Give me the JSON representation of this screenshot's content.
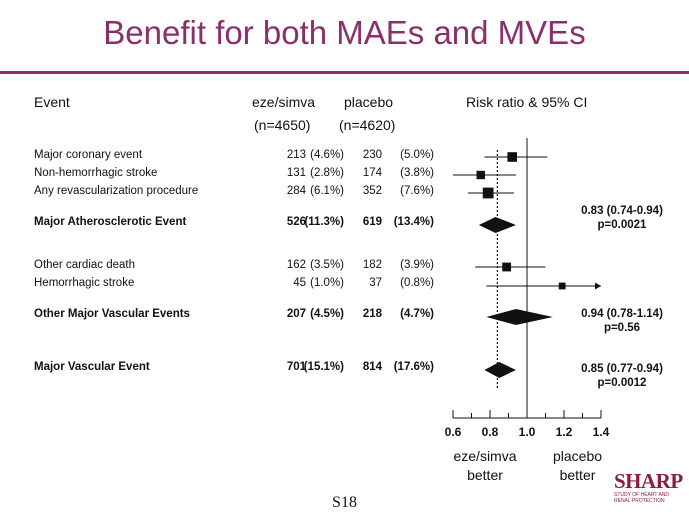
{
  "slide": {
    "title": "Benefit for both MAEs and MVEs",
    "slide_number": "S18"
  },
  "headers": {
    "event": "Event",
    "group1": "eze/simva",
    "group1_n": "(n=4650)",
    "group2": "placebo",
    "group2_n": "(n=4620)",
    "ci": "Risk ratio & 95% CI"
  },
  "rows": [
    {
      "label": "Major coronary event",
      "n1": "213",
      "p1": "(4.6%)",
      "n2": "230",
      "p2": "(5.0%)"
    },
    {
      "label": "Non-hemorrhagic stroke",
      "n1": "131",
      "p1": "(2.8%)",
      "n2": "174",
      "p2": "(3.8%)"
    },
    {
      "label": "Any revascularization procedure",
      "n1": "284",
      "p1": "(6.1%)",
      "n2": "352",
      "p2": "(7.6%)"
    },
    {
      "label": "Major Atherosclerotic Event",
      "n1": "526",
      "p1": "(11.3%)",
      "n2": "619",
      "p2": "(13.4%)"
    },
    {
      "label": "Other cardiac death",
      "n1": "162",
      "p1": "(3.5%)",
      "n2": "182",
      "p2": "(3.9%)"
    },
    {
      "label": "Hemorrhagic stroke",
      "n1": "45",
      "p1": "(1.0%)",
      "n2": "37",
      "p2": "(0.8%)"
    },
    {
      "label": "Other Major Vascular Events",
      "n1": "207",
      "p1": "(4.5%)",
      "n2": "218",
      "p2": "(4.7%)"
    },
    {
      "label": "Major Vascular Event",
      "n1": "701",
      "p1": "(15.1%)",
      "n2": "814",
      "p2": "(17.6%)"
    }
  ],
  "results": [
    {
      "rr": "0.83 (0.74-0.94)",
      "p": "p=0.0021"
    },
    {
      "rr": "0.94 (0.78-1.14)",
      "p": "p=0.56"
    },
    {
      "rr": "0.85 (0.77-0.94)",
      "p": "p=0.0012"
    }
  ],
  "axis_labels": {
    "left_line1": "eze/simva",
    "left_line2": "better",
    "right_line1": "placebo",
    "right_line2": "better"
  },
  "logo": {
    "name": "SHARP",
    "subtitle_line1": "STUDY OF HEART AND",
    "subtitle_line2": "RENAL PROTECTION"
  },
  "colors": {
    "accent": "#8b2f6b",
    "text": "#111111"
  },
  "chart_data": {
    "type": "forest",
    "title": "Risk ratio & 95% CI",
    "xlim": [
      0.6,
      1.4
    ],
    "ticks": [
      "0.6",
      "0.8",
      "1.0",
      "1.2",
      "1.4"
    ],
    "tick_values": [
      0.6,
      0.8,
      1.0,
      1.2,
      1.4
    ],
    "minor_tick_values": [
      0.7,
      0.9,
      1.1,
      1.3
    ],
    "null_line": 1.0,
    "overall_line": 0.84,
    "points": [
      {
        "name": "Major coronary event",
        "shape": "square",
        "weight": 0.7,
        "rr": 0.92,
        "lo": 0.77,
        "hi": 1.11
      },
      {
        "name": "Non-hemorrhagic stroke",
        "shape": "square",
        "weight": 0.55,
        "rr": 0.75,
        "lo": 0.6,
        "hi": 0.94
      },
      {
        "name": "Any revascularization procedure",
        "shape": "square",
        "weight": 0.85,
        "rr": 0.79,
        "lo": 0.68,
        "hi": 0.93
      },
      {
        "name": "Major Atherosclerotic Event",
        "shape": "diamond",
        "rr": 0.83,
        "lo": 0.74,
        "hi": 0.94
      },
      {
        "name": "Other cardiac death",
        "shape": "square",
        "weight": 0.6,
        "rr": 0.89,
        "lo": 0.72,
        "hi": 1.1
      },
      {
        "name": "Hemorrhagic stroke",
        "shape": "square",
        "weight": 0.35,
        "rr": 1.19,
        "lo": 0.78,
        "hi": 1.82
      },
      {
        "name": "Other Major Vascular Events",
        "shape": "diamond",
        "rr": 0.94,
        "lo": 0.78,
        "hi": 1.14
      },
      {
        "name": "Major Vascular Event",
        "shape": "diamond",
        "rr": 0.85,
        "lo": 0.77,
        "hi": 0.94
      }
    ]
  }
}
